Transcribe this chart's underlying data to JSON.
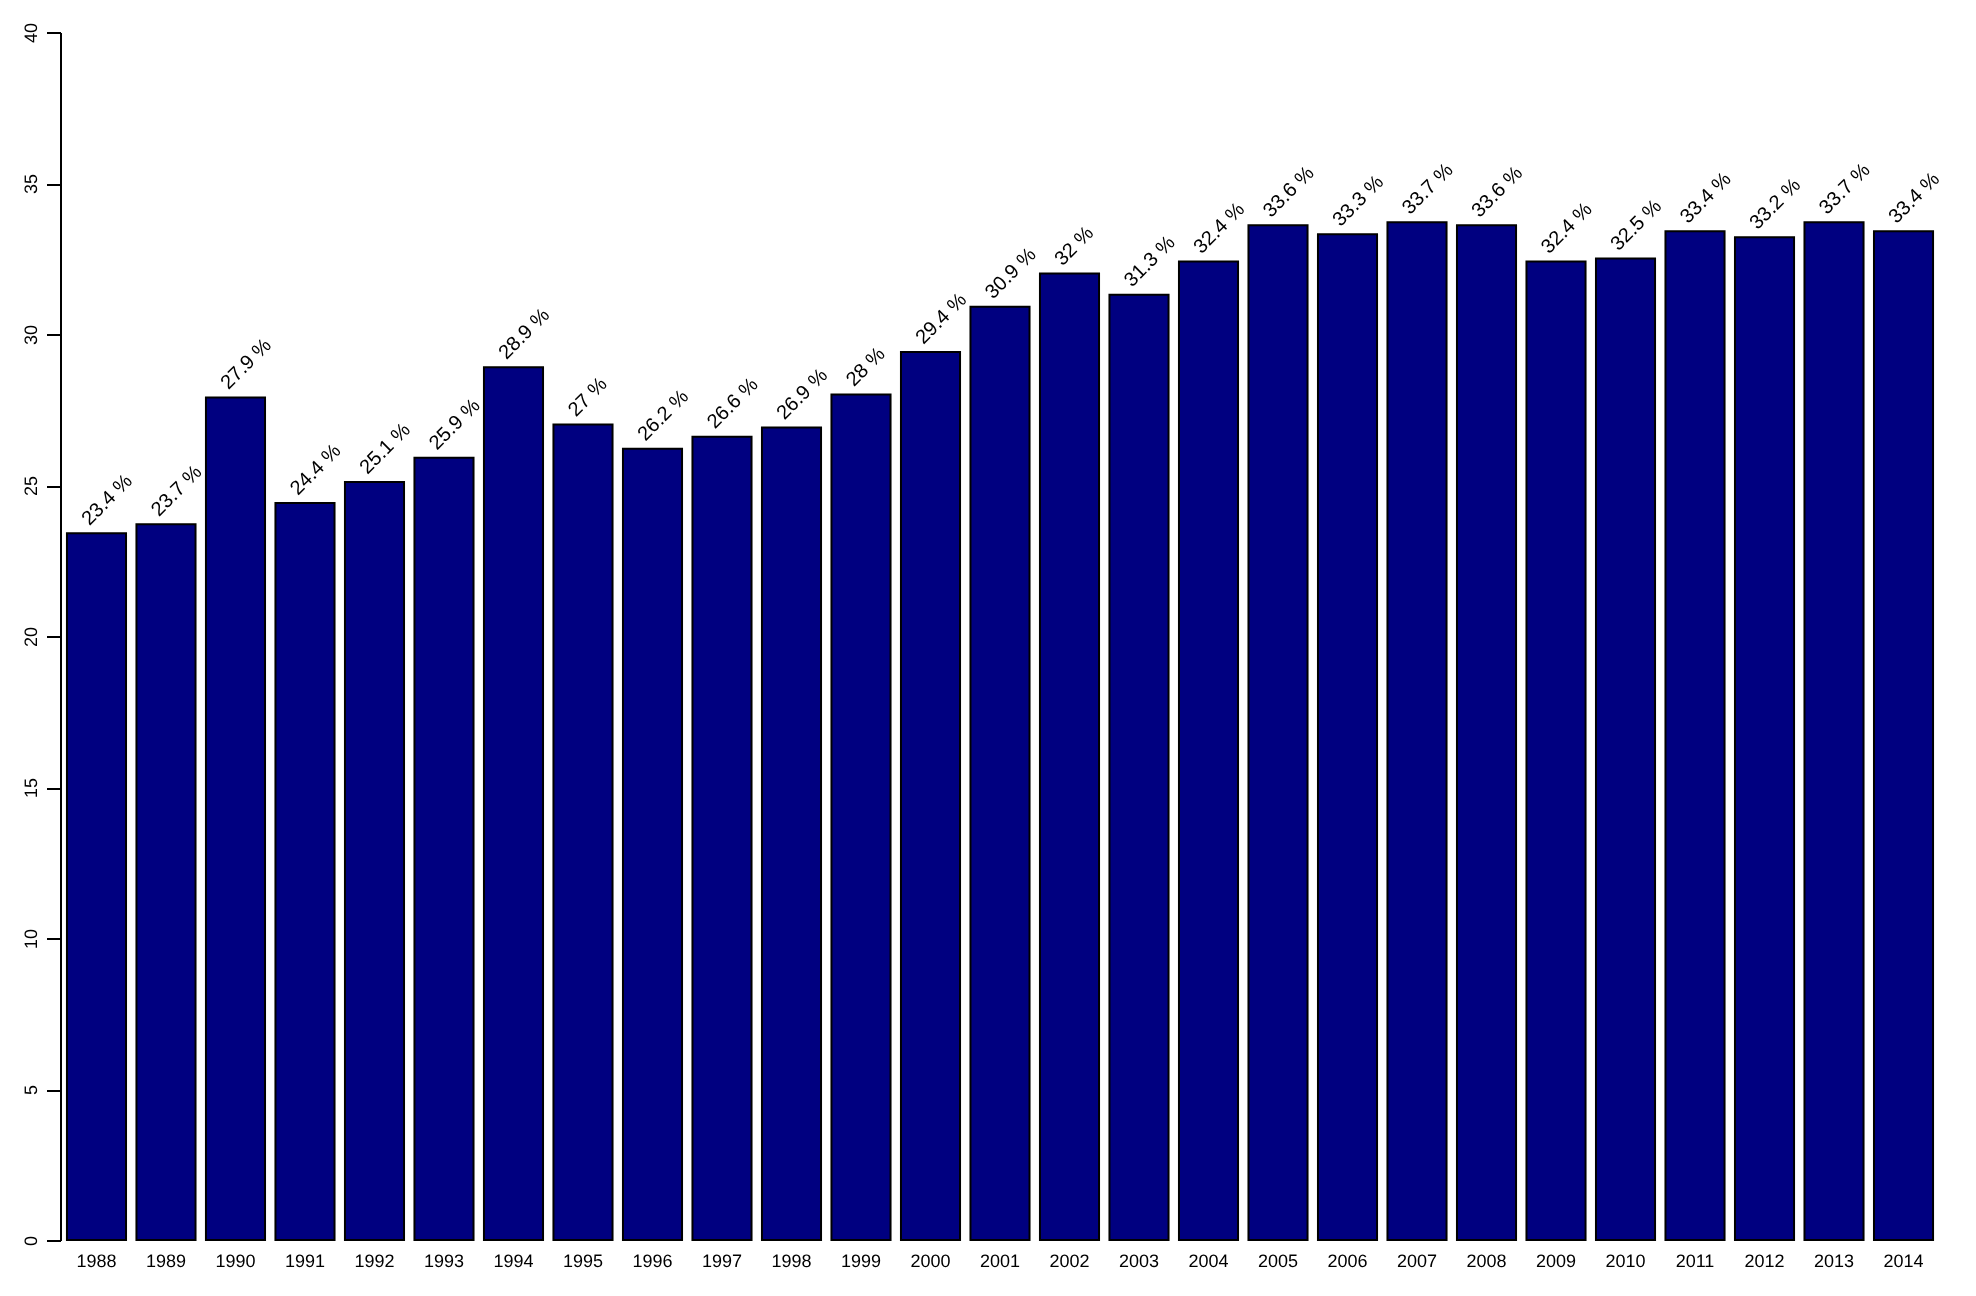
{
  "chart_data": {
    "type": "bar",
    "categories": [
      "1988",
      "1989",
      "1990",
      "1991",
      "1992",
      "1993",
      "1994",
      "1995",
      "1996",
      "1997",
      "1998",
      "1999",
      "2000",
      "2001",
      "2002",
      "2003",
      "2004",
      "2005",
      "2006",
      "2007",
      "2008",
      "2009",
      "2010",
      "2011",
      "2012",
      "2013",
      "2014"
    ],
    "values": [
      23.4,
      23.7,
      27.9,
      24.4,
      25.1,
      25.9,
      28.9,
      27,
      26.2,
      26.6,
      26.9,
      28,
      29.4,
      30.9,
      32,
      31.3,
      32.4,
      33.6,
      33.3,
      33.7,
      33.6,
      32.4,
      32.5,
      33.4,
      33.2,
      33.7,
      33.4
    ],
    "value_labels": [
      "23.4 %",
      "23.7 %",
      "27.9 %",
      "24.4 %",
      "25.1 %",
      "25.9 %",
      "28.9 %",
      "27 %",
      "26.2 %",
      "26.6 %",
      "26.9 %",
      "28 %",
      "29.4 %",
      "30.9 %",
      "32 %",
      "31.3 %",
      "32.4 %",
      "33.6 %",
      "33.3 %",
      "33.7 %",
      "33.6 %",
      "32.4 %",
      "32.5 %",
      "33.4 %",
      "33.2 %",
      "33.7 %",
      "33.4 %"
    ],
    "color": "#000080",
    "ylim": [
      0,
      40
    ],
    "yticks": [
      0,
      5,
      10,
      15,
      20,
      25,
      30,
      35,
      40
    ],
    "grid": false
  }
}
